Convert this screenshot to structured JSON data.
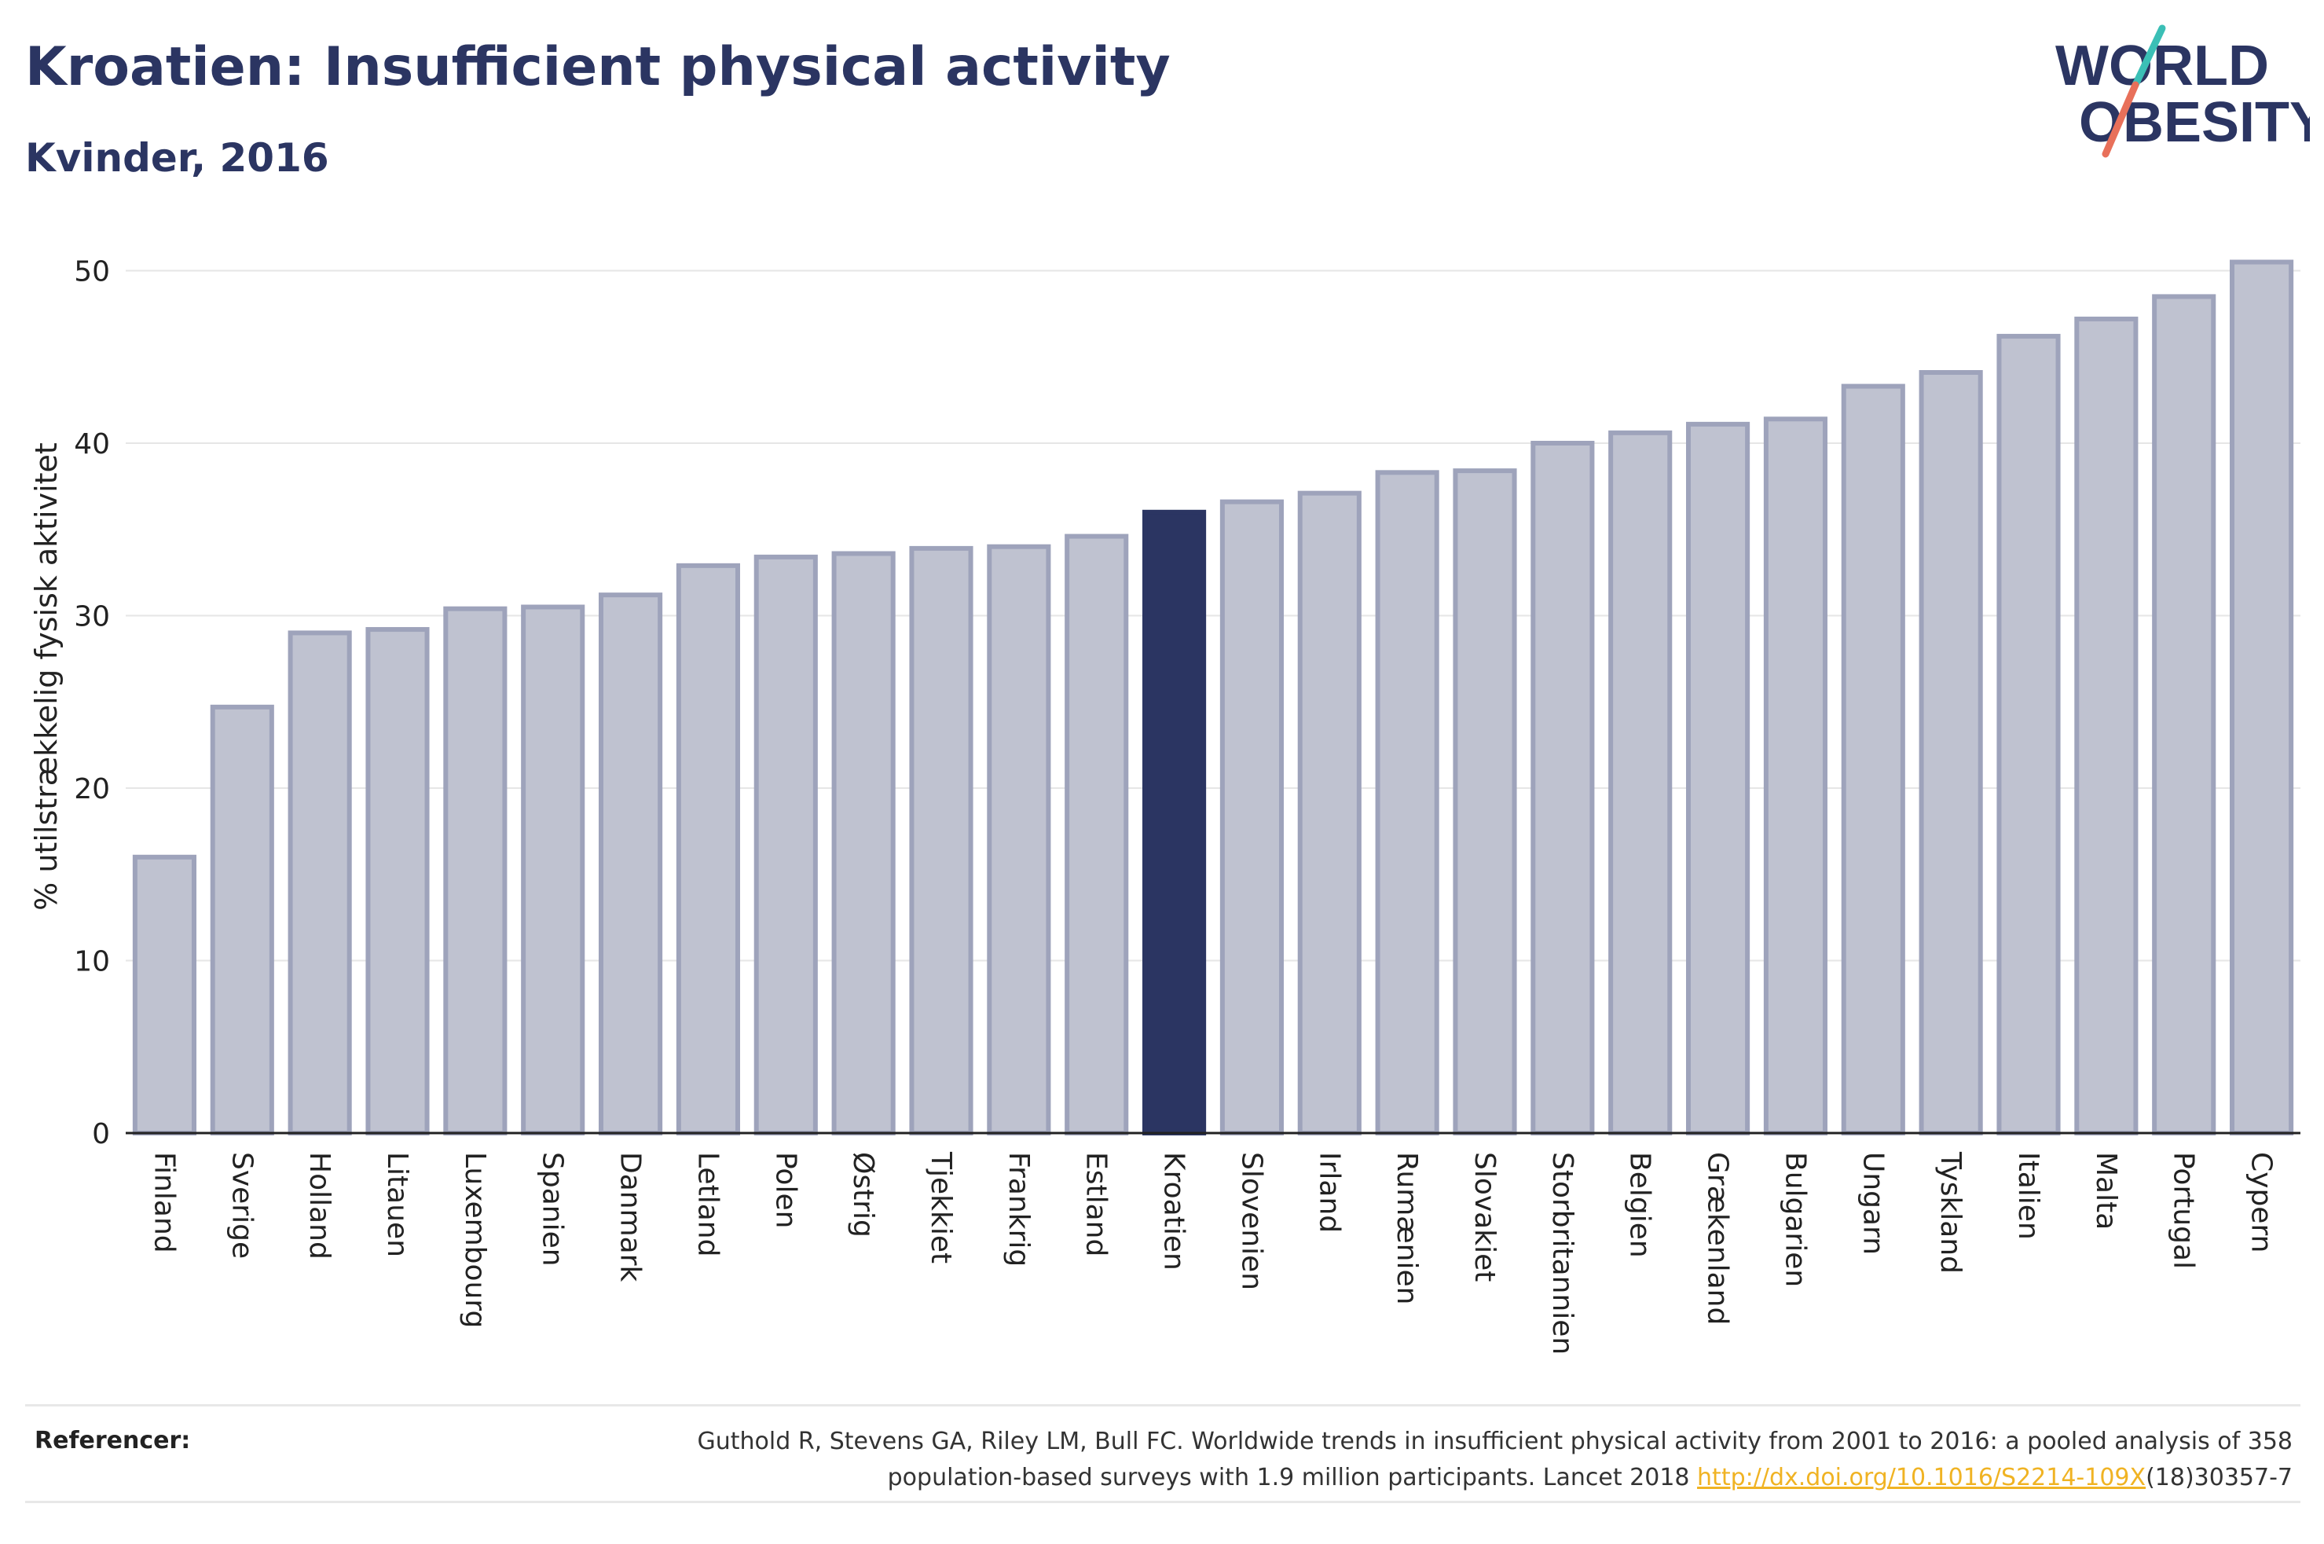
{
  "header": {
    "title": "Kroatien: Insufficient physical activity",
    "subtitle": "Kvinder, 2016"
  },
  "logo": {
    "line1": "WORLD",
    "line2": "OBESITY"
  },
  "chart_data": {
    "type": "bar",
    "ylabel": "% utilstrækkelig fysisk aktivitet",
    "ylim": [
      0,
      52
    ],
    "yticks": [
      0,
      10,
      20,
      30,
      40,
      50
    ],
    "grid": true,
    "highlight": "Kroatien",
    "categories": [
      "Finland",
      "Sverige",
      "Holland",
      "Litauen",
      "Luxembourg",
      "Spanien",
      "Danmark",
      "Letland",
      "Polen",
      "Østrig",
      "Tjekkiet",
      "Frankrig",
      "Estland",
      "Kroatien",
      "Slovenien",
      "Irland",
      "Rumænien",
      "Slovakiet",
      "Storbritannien",
      "Belgien",
      "Grækenland",
      "Bulgarien",
      "Ungarn",
      "Tyskland",
      "Italien",
      "Malta",
      "Portugal",
      "Cypern"
    ],
    "values": [
      16.0,
      24.7,
      29.0,
      29.2,
      30.4,
      30.5,
      31.2,
      32.9,
      33.4,
      33.6,
      33.9,
      34.0,
      34.6,
      36.0,
      36.6,
      37.1,
      38.3,
      38.4,
      40.0,
      40.6,
      41.1,
      41.4,
      43.3,
      44.1,
      46.2,
      47.2,
      48.5,
      50.5
    ],
    "colors": {
      "bar": "#bfc2d0",
      "bar_border": "#9ea3bb",
      "highlight": "#2b3562",
      "axis": "#222222",
      "grid": "#e6e6e6"
    }
  },
  "references": {
    "label": "Referencer:",
    "text_before": "Guthold R, Stevens GA, Riley LM, Bull FC. Worldwide trends in insufficient physical activity from 2001 to 2016: a pooled analysis of 358 population-based surveys with 1.9 million participants. Lancet 2018 ",
    "link_text": "http://dx.doi.org/10.1016/S2214-109X",
    "text_after": "(18)30357-7"
  }
}
